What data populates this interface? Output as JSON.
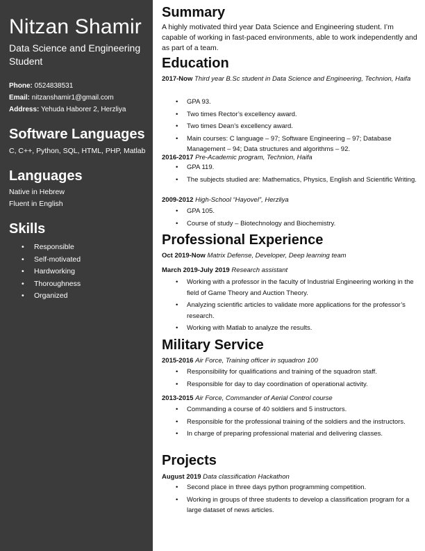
{
  "sidebar": {
    "name": "Nitzan Shamir",
    "subtitle": "Data Science and Engineering Student",
    "contact": {
      "phone_label": "Phone:",
      "phone": "0524838531",
      "email_label": "Email:",
      "email": "nitzanshamir1@gmail.com",
      "address_label": "Address:",
      "address": "Yehuda Haborer 2, Herzliya"
    },
    "software_heading": "Software Languages",
    "software": "C, C++, Python, SQL, HTML, PHP, Matlab",
    "languages_heading": "Languages",
    "languages": [
      "Native in Hebrew",
      "Fluent in English"
    ],
    "skills_heading": "Skills",
    "skills": [
      "Responsible",
      "Self-motivated",
      "Hardworking",
      "Thoroughness",
      "Organized"
    ]
  },
  "summary": {
    "heading": "Summary",
    "text": "A highly motivated third year Data Science and Engineering student. I’m capable of working in fast-paced environments, able to work independently and as part of a team."
  },
  "education": {
    "heading": "Education",
    "entries": [
      {
        "date": "2017-Now",
        "title": "Third year B.Sc student in Data Science and Engineering, Technion, Haifa",
        "bullets": [
          "GPA 93.",
          "Two times Rector’s excellency award.",
          "Two times Dean’s excellency award.",
          "Main courses: C language – 97; Software Engineering – 97; Database Management – 94; Data structures and algorithms – 92."
        ]
      },
      {
        "date": "2016-2017",
        "title": "Pre-Academic program, Technion, Haifa",
        "bullets": [
          "GPA 119.",
          "The subjects studied are: Mathematics, Physics, English and Scientific Writing."
        ]
      },
      {
        "date": "2009-2012",
        "title": "High-School “Hayovel”, Herzliya",
        "bullets": [
          "GPA 105.",
          "Course of study – Biotechnology and Biochemistry."
        ]
      }
    ]
  },
  "experience": {
    "heading": "Professional Experience",
    "entries": [
      {
        "date": "Oct 2019-Now",
        "title": "Matrix Defense, Developer, Deep learning team",
        "bullets": []
      },
      {
        "date": "March 2019-July 2019",
        "title": "Research assistant",
        "bullets": [
          "Working with a professor in the faculty of Industrial Engineering working in the field of Game Theory and Auction Theory.",
          "Analyzing scientific articles to validate more applications for the professor’s research.",
          "Working with Matlab to analyze the results."
        ]
      }
    ]
  },
  "military": {
    "heading": "Military Service",
    "entries": [
      {
        "date": "2015-2016",
        "title": "Air Force, Training officer in squadron 100",
        "bullets": [
          "Responsibility for qualifications and training of the squadron staff.",
          "Responsible for day to day coordination of operational activity."
        ]
      },
      {
        "date": "2013-2015",
        "title": "Air Force, Commander of Aerial Control course",
        "bullets": [
          "Commanding a course of 40 soldiers and 5 instructors.",
          "Responsible for the professional training of the soldiers and the instructors.",
          "In charge of preparing professional material and delivering classes."
        ]
      }
    ]
  },
  "projects": {
    "heading": "Projects",
    "entries": [
      {
        "date": "August 2019",
        "title": "Data classification Hackathon",
        "bullets": [
          "Second place in three days python programming competition.",
          "Working in groups of three students to develop a classification program for a large dataset of news articles."
        ]
      }
    ]
  }
}
